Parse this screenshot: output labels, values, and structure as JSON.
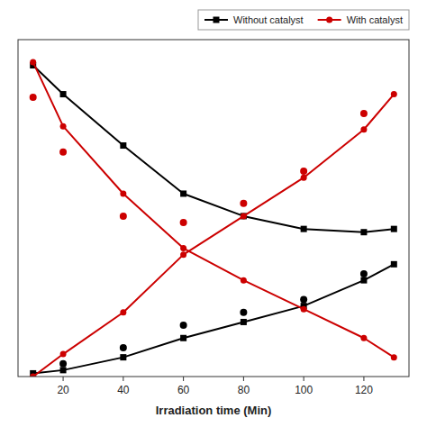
{
  "chart_data": {
    "type": "line",
    "xlabel": "Irradiation time (Min)",
    "xlim": [
      5,
      135
    ],
    "ylim": [
      0,
      1.05
    ],
    "xticks": [
      20,
      40,
      60,
      80,
      100,
      120
    ],
    "tick_labels": "x",
    "grid": false,
    "legend": "upper right",
    "series": [
      {
        "name": "Without catalyst",
        "type": "line",
        "color": "#000000",
        "marker": "square",
        "line_style": "solid",
        "x": [
          10,
          20,
          40,
          60,
          80,
          100,
          120,
          130
        ],
        "values": [
          0.97,
          0.88,
          0.72,
          0.57,
          0.5,
          0.46,
          0.45,
          0.46
        ]
      },
      {
        "type": "line",
        "color": "#000000",
        "marker": "square",
        "line_style": "solid",
        "x": [
          10,
          20,
          40,
          60,
          80,
          100,
          120,
          130
        ],
        "values": [
          0.01,
          0.02,
          0.06,
          0.12,
          0.17,
          0.22,
          0.3,
          0.35
        ]
      },
      {
        "name": "With catalyst",
        "type": "line",
        "color": "#cc0000",
        "marker": "circle",
        "line_style": "solid",
        "x": [
          10,
          20,
          40,
          60,
          80,
          100,
          120,
          130
        ],
        "values": [
          0.98,
          0.78,
          0.57,
          0.4,
          0.3,
          0.21,
          0.12,
          0.06
        ]
      },
      {
        "type": "line",
        "color": "#cc0000",
        "marker": "circle",
        "line_style": "solid",
        "x": [
          10,
          20,
          40,
          60,
          80,
          100,
          120,
          130
        ],
        "values": [
          0.0,
          0.07,
          0.2,
          0.38,
          0.5,
          0.62,
          0.77,
          0.88
        ]
      },
      {
        "type": "scatter",
        "color": "#000000",
        "marker": "circle",
        "x": [
          20,
          40,
          60,
          80,
          100,
          120
        ],
        "values": [
          0.04,
          0.09,
          0.16,
          0.2,
          0.24,
          0.32
        ]
      },
      {
        "type": "scatter",
        "color": "#cc0000",
        "marker": "circle",
        "x": [
          10,
          20,
          40,
          60,
          80,
          100,
          120
        ],
        "values": [
          0.87,
          0.7,
          0.5,
          0.48,
          0.54,
          0.64,
          0.82
        ]
      }
    ]
  }
}
